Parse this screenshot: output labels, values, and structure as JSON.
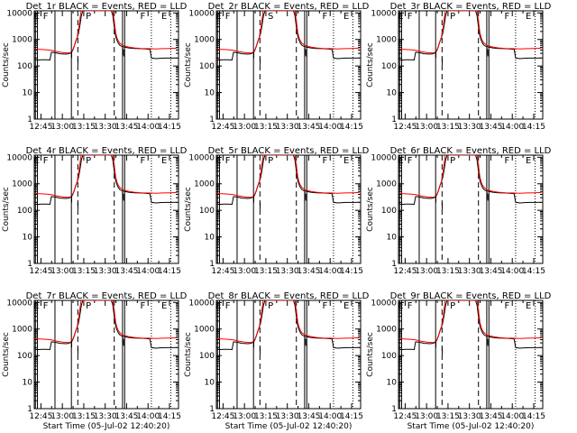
{
  "colors": {
    "background": "#ffffff",
    "events": "#000000",
    "lld": "#ff0000",
    "axes": "#000000"
  },
  "chart_data": [
    {
      "type": "line",
      "title": "Det_1r BLACK = Events, RED = LLD",
      "xlabel": "Start Time (05-Jul-02 12:40:20)",
      "ylabel": "Counts/sec",
      "show_xlabel": false,
      "show_ylabel": true,
      "markers": [
        "E",
        "F",
        "P",
        "F",
        "E"
      ]
    },
    {
      "type": "line",
      "title": "Det_2r BLACK = Events, RED = LLD",
      "xlabel": "Start Time (05-Jul-02 12:40:20)",
      "ylabel": "Counts/sec",
      "show_xlabel": false,
      "show_ylabel": true,
      "markers": [
        "E",
        "F",
        "S",
        "F",
        "E"
      ]
    },
    {
      "type": "line",
      "title": "Det_3r BLACK = Events, RED = LLD",
      "xlabel": "Start Time (05-Jul-02 12:40:20)",
      "ylabel": "Counts/sec",
      "show_xlabel": false,
      "show_ylabel": true,
      "markers": [
        "E",
        "F",
        "P",
        "F",
        "E"
      ]
    },
    {
      "type": "line",
      "title": "Det_4r BLACK = Events, RED = LLD",
      "xlabel": "Start Time (05-Jul-02 12:40:20)",
      "ylabel": "Counts/sec",
      "show_xlabel": false,
      "show_ylabel": true,
      "markers": [
        "E",
        "F",
        "P",
        "F",
        "E"
      ]
    },
    {
      "type": "line",
      "title": "Det_5r BLACK = Events, RED = LLD",
      "xlabel": "Start Time (05-Jul-02 12:40:20)",
      "ylabel": "Counts/sec",
      "show_xlabel": false,
      "show_ylabel": true,
      "markers": [
        "E",
        "F",
        "P",
        "F",
        "E"
      ]
    },
    {
      "type": "line",
      "title": "Det_6r BLACK = Events, RED = LLD",
      "xlabel": "Start Time (05-Jul-02 12:40:20)",
      "ylabel": "Counts/sec",
      "show_xlabel": false,
      "show_ylabel": true,
      "markers": [
        "E",
        "F",
        "P",
        "F",
        "E"
      ]
    },
    {
      "type": "line",
      "title": "Det_7r BLACK = Events, RED = LLD",
      "xlabel": "Start Time (05-Jul-02 12:40:20)",
      "ylabel": "Counts/sec",
      "show_xlabel": true,
      "show_ylabel": true,
      "markers": [
        "E",
        "F",
        "P",
        "F",
        "E"
      ]
    },
    {
      "type": "line",
      "title": "Det_8r BLACK = Events, RED = LLD",
      "xlabel": "Start Time (05-Jul-02 12:40:20)",
      "ylabel": "Counts/sec",
      "show_xlabel": true,
      "show_ylabel": true,
      "markers": [
        "E",
        "F",
        "P",
        "F",
        "E"
      ]
    },
    {
      "type": "line",
      "title": "Det_9r BLACK = Events, RED = LLD",
      "xlabel": "Start Time (05-Jul-02 12:40:20)",
      "ylabel": "Counts/sec",
      "show_xlabel": true,
      "show_ylabel": true,
      "markers": [
        "E",
        "F",
        "P",
        "F",
        "E"
      ]
    }
  ],
  "shared": {
    "x_ticks": [
      {
        "m": 4.67,
        "label": "12:45"
      },
      {
        "m": 19.67,
        "label": "13:00"
      },
      {
        "m": 34.67,
        "label": "13:15"
      },
      {
        "m": 49.67,
        "label": "13:30"
      },
      {
        "m": 64.67,
        "label": "13:45"
      },
      {
        "m": 79.67,
        "label": "14:00"
      },
      {
        "m": 94.67,
        "label": "14:15"
      }
    ],
    "xlim": [
      0,
      101
    ],
    "ylim": [
      1,
      12000
    ],
    "y_scale": "log",
    "y_ticks": [
      {
        "v": 1,
        "label": "1"
      },
      {
        "v": 10,
        "label": "10"
      },
      {
        "v": 100,
        "label": "100"
      },
      {
        "v": 1000,
        "label": "1000"
      },
      {
        "v": 10000,
        "label": "10000"
      }
    ],
    "vlines": [
      {
        "m": 0.8,
        "style": "solid"
      },
      {
        "m": 2.2,
        "style": "solid"
      },
      {
        "m": 14.5,
        "style": "solid"
      },
      {
        "m": 26.0,
        "style": "solid"
      },
      {
        "m": 30.5,
        "style": "dashed"
      },
      {
        "m": 56.0,
        "style": "dashed"
      },
      {
        "m": 61.8,
        "style": "solid"
      },
      {
        "m": 63.3,
        "style": "solid"
      },
      {
        "m": 82.0,
        "style": "dotted"
      },
      {
        "m": 95.6,
        "style": "dotted"
      }
    ],
    "events": [
      [
        0.5,
        170
      ],
      [
        3,
        168
      ],
      [
        5,
        172
      ],
      [
        8,
        171
      ],
      [
        10,
        170
      ],
      [
        11,
        168
      ],
      [
        12,
        330
      ],
      [
        14,
        320
      ],
      [
        16,
        305
      ],
      [
        18,
        290
      ],
      [
        20,
        285
      ],
      [
        22,
        280
      ],
      [
        24,
        290
      ],
      [
        26,
        320
      ],
      [
        27,
        400
      ],
      [
        28,
        560
      ],
      [
        29,
        820
      ],
      [
        30,
        1150
      ],
      [
        31,
        1700
      ],
      [
        32,
        3500
      ],
      [
        33,
        8000
      ],
      [
        34,
        12000
      ],
      [
        54,
        12000
      ],
      [
        55,
        8000
      ],
      [
        56,
        3000
      ],
      [
        57,
        1300
      ],
      [
        58,
        900
      ],
      [
        59,
        700
      ],
      [
        60,
        600
      ],
      [
        61,
        560
      ],
      [
        63,
        520
      ],
      [
        66,
        480
      ],
      [
        70,
        460
      ],
      [
        74,
        450
      ],
      [
        78,
        440
      ],
      [
        81,
        420
      ],
      [
        82,
        200
      ],
      [
        85,
        190
      ],
      [
        88,
        195
      ],
      [
        92,
        198
      ],
      [
        96,
        198
      ],
      [
        100,
        200
      ]
    ],
    "lld": [
      [
        0.5,
        430
      ],
      [
        4,
        420
      ],
      [
        8,
        410
      ],
      [
        12,
        390
      ],
      [
        16,
        350
      ],
      [
        20,
        320
      ],
      [
        24,
        310
      ],
      [
        26,
        330
      ],
      [
        27,
        420
      ],
      [
        28,
        580
      ],
      [
        29,
        850
      ],
      [
        30,
        1200
      ],
      [
        31,
        2200
      ],
      [
        32,
        6000
      ],
      [
        32.8,
        12000
      ],
      [
        55,
        12000
      ],
      [
        56,
        5000
      ],
      [
        57,
        1800
      ],
      [
        58,
        1100
      ],
      [
        59,
        850
      ],
      [
        60,
        720
      ],
      [
        62,
        600
      ],
      [
        66,
        520
      ],
      [
        70,
        480
      ],
      [
        75,
        460
      ],
      [
        80,
        450
      ],
      [
        85,
        440
      ],
      [
        90,
        450
      ],
      [
        95,
        460
      ],
      [
        100,
        470
      ]
    ],
    "marker_positions": [
      1.5,
      8.0,
      38.0,
      76.0,
      91.0
    ]
  }
}
